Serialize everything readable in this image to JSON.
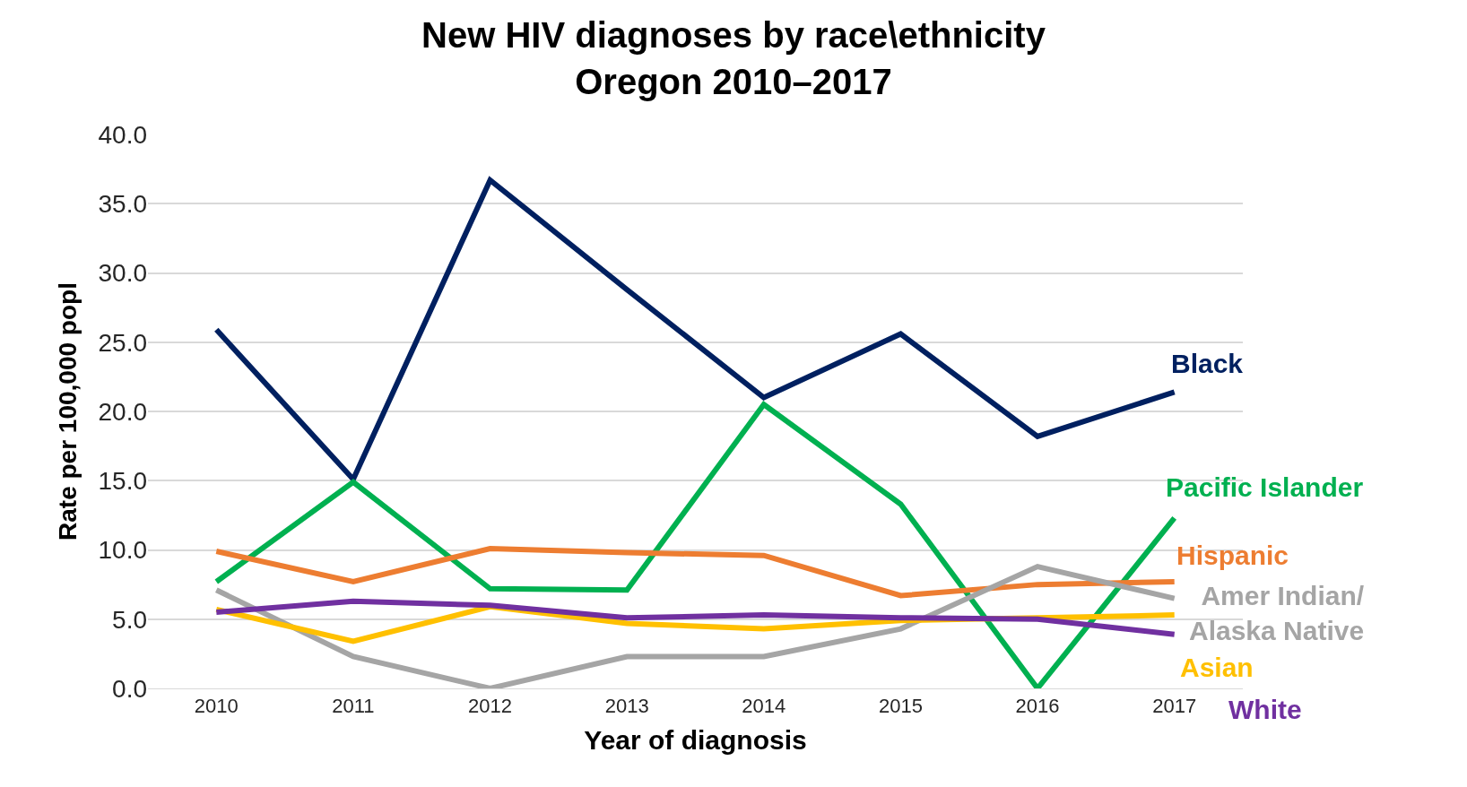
{
  "chart_data": {
    "type": "line",
    "title": "New HIV diagnoses by race\\ethnicity\nOregon 2010–2017",
    "xlabel": "Year of diagnosis",
    "ylabel": "Rate per 100,000 popl",
    "categories": [
      "2010",
      "2011",
      "2012",
      "2013",
      "2014",
      "2015",
      "2016",
      "2017"
    ],
    "series": [
      {
        "name": "Black",
        "color": "#002060",
        "values": [
          25.9,
          15.1,
          36.7,
          28.8,
          21.0,
          25.6,
          18.2,
          21.4
        ]
      },
      {
        "name": "Pacific Islander",
        "color": "#00b050",
        "values": [
          7.7,
          14.9,
          7.2,
          7.1,
          20.5,
          13.3,
          0.0,
          12.3
        ]
      },
      {
        "name": "Hispanic",
        "color": "#ed7d31",
        "values": [
          9.9,
          7.7,
          10.1,
          9.8,
          9.6,
          6.7,
          7.5,
          7.7
        ]
      },
      {
        "name": "Amer Indian/\nAlaska Native",
        "color": "#a5a5a5",
        "values": [
          7.1,
          2.3,
          0.0,
          2.3,
          2.3,
          4.3,
          8.8,
          6.5
        ]
      },
      {
        "name": "Asian",
        "color": "#ffc000",
        "values": [
          5.7,
          3.4,
          5.9,
          4.7,
          4.3,
          4.9,
          5.1,
          5.3
        ]
      },
      {
        "name": "White",
        "color": "#7030a0",
        "values": [
          5.5,
          6.3,
          6.0,
          5.1,
          5.3,
          5.1,
          5.0,
          3.9
        ]
      }
    ],
    "ylim": [
      0,
      40
    ],
    "yticks": [
      {
        "value": 0,
        "label": "0.0"
      },
      {
        "value": 5,
        "label": "5.0"
      },
      {
        "value": 10,
        "label": "10.0"
      },
      {
        "value": 15,
        "label": "15.0"
      },
      {
        "value": 20,
        "label": "20.0"
      },
      {
        "value": 25,
        "label": "25.0"
      },
      {
        "value": 30,
        "label": "30.0"
      },
      {
        "value": 35,
        "label": "35.0"
      },
      {
        "value": 40,
        "label": "40.0"
      }
    ],
    "grid": "y",
    "legend": false,
    "marker": "none",
    "line_style": "solid"
  }
}
